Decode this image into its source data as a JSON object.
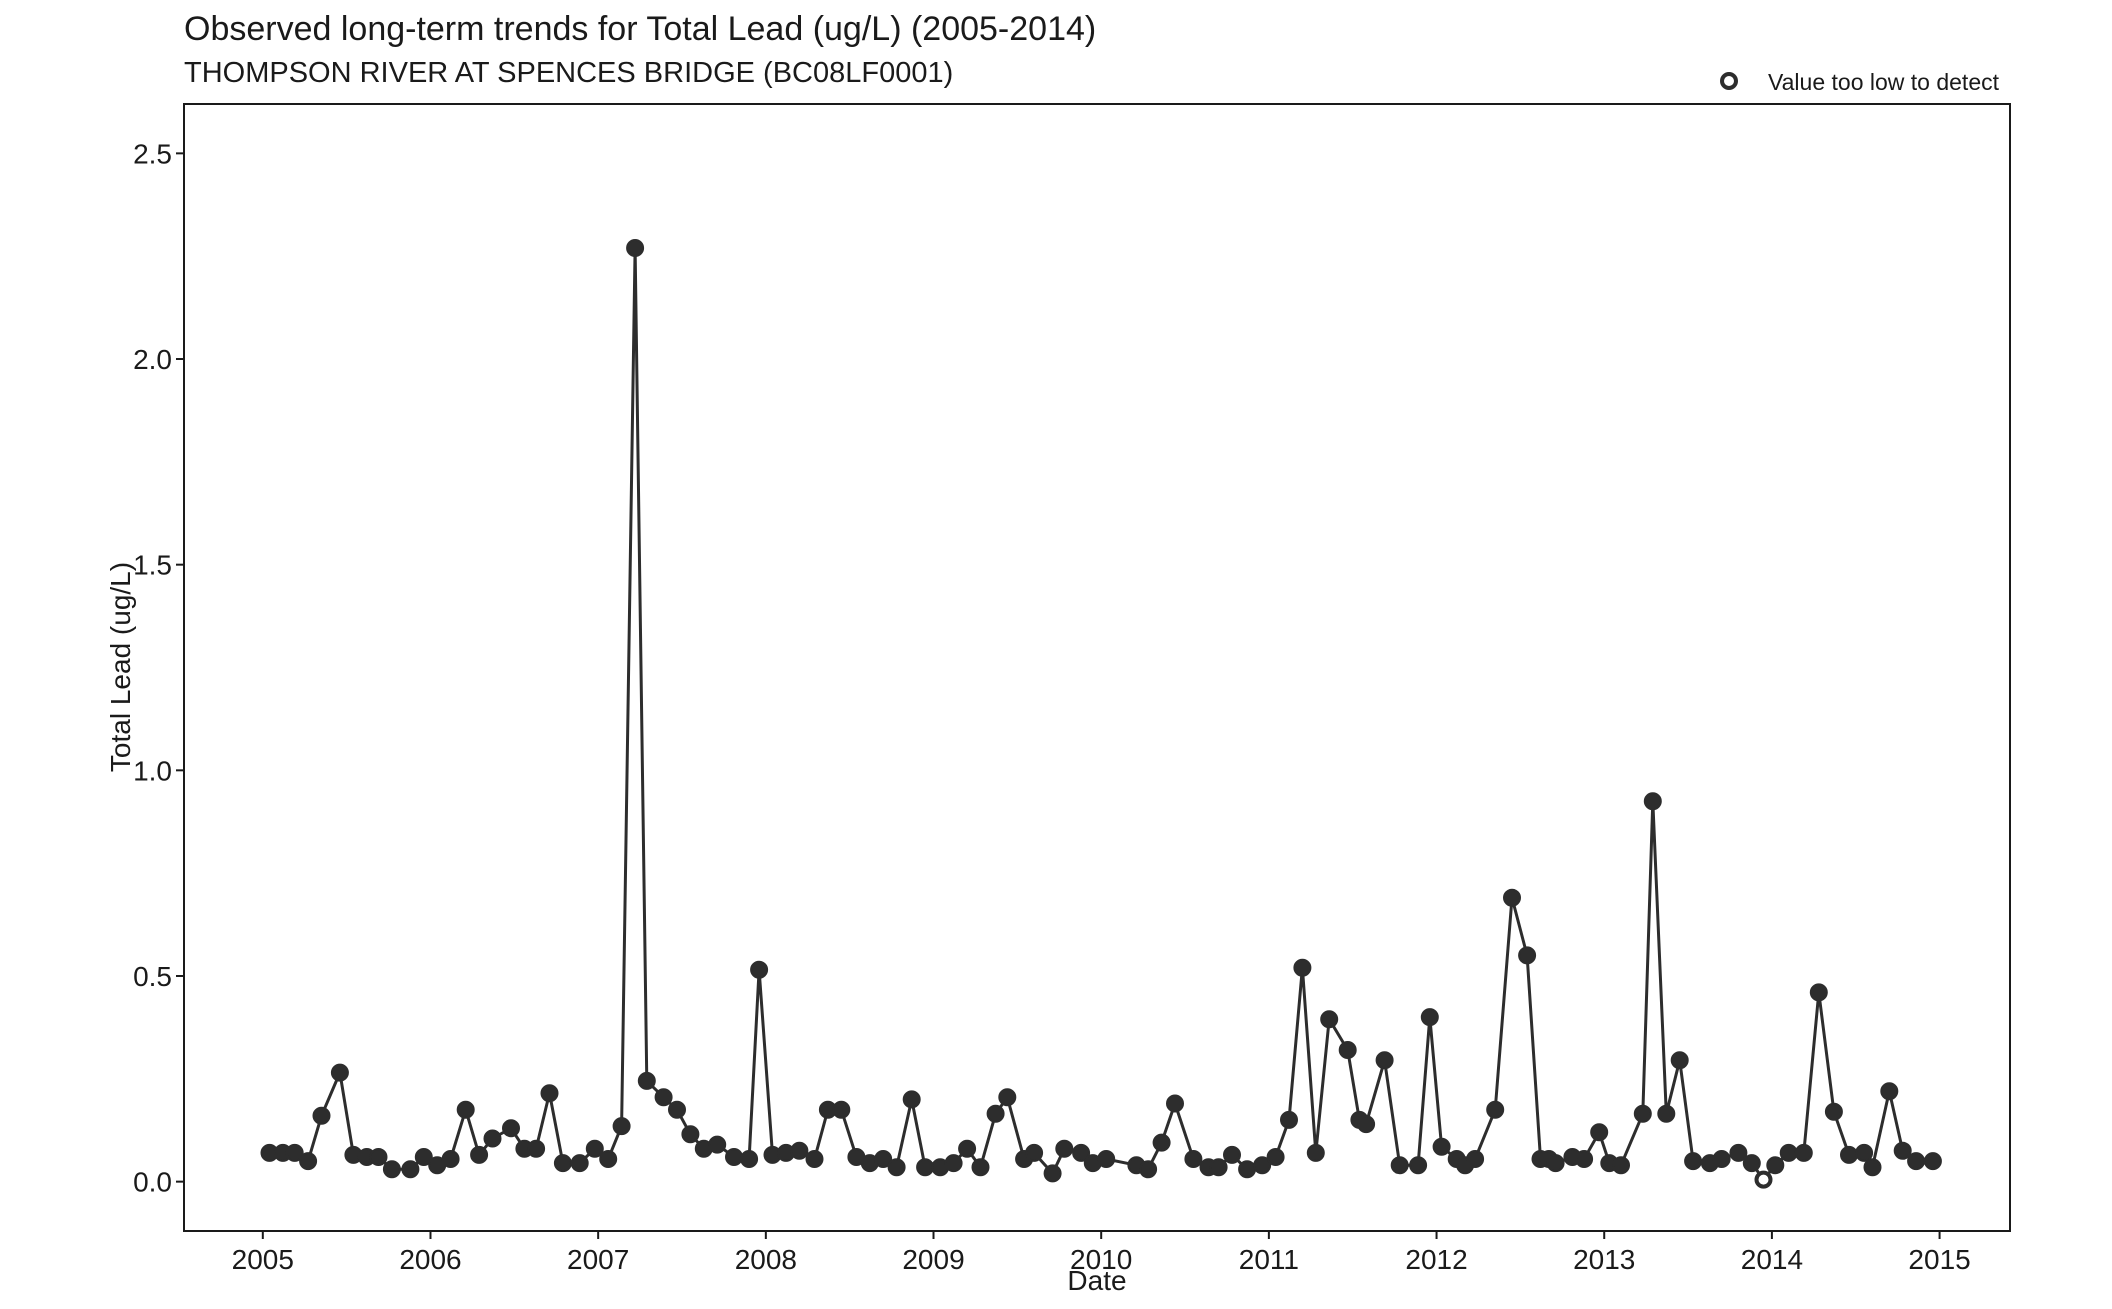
{
  "chart_data": {
    "type": "line",
    "title": "Observed long-term trends for Total Lead (ug/L) (2005-2014)",
    "subtitle": "THOMPSON RIVER AT SPENCES BRIDGE (BC08LF0001)",
    "xlabel": "Date",
    "ylabel": "Total Lead (ug/L)",
    "xlim": [
      2004.53,
      2015.42
    ],
    "ylim": [
      -0.12,
      2.62
    ],
    "x_ticks": [
      2005,
      2006,
      2007,
      2008,
      2009,
      2010,
      2011,
      2012,
      2013,
      2014,
      2015
    ],
    "x_tick_labels": [
      "2005",
      "2006",
      "2007",
      "2008",
      "2009",
      "2010",
      "2011",
      "2012",
      "2013",
      "2014",
      "2015"
    ],
    "y_ticks": [
      0.0,
      0.5,
      1.0,
      1.5,
      2.0,
      2.5
    ],
    "y_tick_labels": [
      "0.0",
      "0.5",
      "1.0",
      "1.5",
      "2.0",
      "2.5"
    ],
    "grid": false,
    "legend": {
      "position": "top-right",
      "entries": [
        {
          "label": "Value too low to detect",
          "marker": "open-circle"
        }
      ]
    },
    "colors": {
      "series": "#2d2d2d",
      "axis": "#1a1a1a",
      "background": "#ffffff"
    },
    "series": [
      {
        "x": [
          2005.04,
          2005.12,
          2005.19,
          2005.27,
          2005.35,
          2005.46,
          2005.54,
          2005.62,
          2005.69,
          2005.77,
          2005.88,
          2005.96,
          2006.04,
          2006.12,
          2006.21,
          2006.29,
          2006.37,
          2006.48,
          2006.56,
          2006.63,
          2006.71,
          2006.79,
          2006.89,
          2006.98,
          2007.06,
          2007.14,
          2007.22,
          2007.29,
          2007.39,
          2007.47,
          2007.55,
          2007.63,
          2007.71,
          2007.81,
          2007.9,
          2007.96,
          2008.04,
          2008.12,
          2008.2,
          2008.29,
          2008.37,
          2008.45,
          2008.54,
          2008.62,
          2008.7,
          2008.78,
          2008.87,
          2008.95,
          2009.04,
          2009.12,
          2009.2,
          2009.28,
          2009.37,
          2009.44,
          2009.54,
          2009.6,
          2009.71,
          2009.78,
          2009.88,
          2009.95,
          2010.03,
          2010.21,
          2010.28,
          2010.36,
          2010.44,
          2010.55,
          2010.64,
          2010.7,
          2010.78,
          2010.87,
          2010.96,
          2011.04,
          2011.12,
          2011.2,
          2011.28,
          2011.36,
          2011.47,
          2011.54,
          2011.58,
          2011.69,
          2011.78,
          2011.89,
          2011.96,
          2012.03,
          2012.12,
          2012.17,
          2012.23,
          2012.35,
          2012.45,
          2012.54,
          2012.62,
          2012.67,
          2012.71,
          2012.81,
          2012.88,
          2012.97,
          2013.03,
          2013.1,
          2013.23,
          2013.29,
          2013.37,
          2013.45,
          2013.53,
          2013.63,
          2013.7,
          2013.8,
          2013.88,
          2013.95,
          2014.02,
          2014.1,
          2014.19,
          2014.28,
          2014.37,
          2014.46,
          2014.55,
          2014.6,
          2014.7,
          2014.78,
          2014.86,
          2014.96
        ],
        "y": [
          0.07,
          0.07,
          0.07,
          0.05,
          0.16,
          0.265,
          0.065,
          0.06,
          0.06,
          0.03,
          0.03,
          0.06,
          0.04,
          0.055,
          0.175,
          0.065,
          0.105,
          0.13,
          0.08,
          0.08,
          0.215,
          0.045,
          0.045,
          0.08,
          0.055,
          0.135,
          2.27,
          0.245,
          0.205,
          0.175,
          0.115,
          0.08,
          0.09,
          0.06,
          0.055,
          0.515,
          0.065,
          0.07,
          0.075,
          0.055,
          0.175,
          0.175,
          0.06,
          0.045,
          0.055,
          0.035,
          0.2,
          0.035,
          0.035,
          0.045,
          0.08,
          0.035,
          0.165,
          0.205,
          0.055,
          0.07,
          0.02,
          0.08,
          0.07,
          0.045,
          0.055,
          0.04,
          0.03,
          0.095,
          0.19,
          0.055,
          0.035,
          0.035,
          0.065,
          0.03,
          0.04,
          0.06,
          0.15,
          0.52,
          0.07,
          0.395,
          0.32,
          0.15,
          0.14,
          0.295,
          0.04,
          0.04,
          0.4,
          0.085,
          0.055,
          0.04,
          0.055,
          0.175,
          0.69,
          0.55,
          0.055,
          0.055,
          0.045,
          0.06,
          0.055,
          0.12,
          0.045,
          0.04,
          0.165,
          0.925,
          0.165,
          0.295,
          0.05,
          0.045,
          0.055,
          0.07,
          0.045,
          0.005,
          0.04,
          0.07,
          0.07,
          0.46,
          0.17,
          0.065,
          0.07,
          0.035,
          0.22,
          0.075,
          0.05,
          0.05
        ],
        "below_detection": [
          107
        ]
      }
    ]
  }
}
